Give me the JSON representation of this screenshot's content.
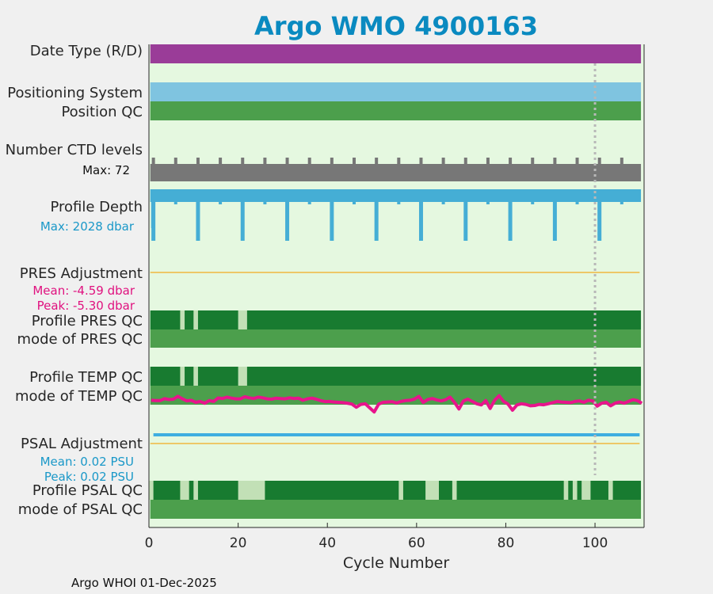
{
  "chart_data": {
    "type": "bar",
    "title": "Argo WMO 4900163",
    "xlabel": "Cycle Number",
    "xlim": [
      0,
      111
    ],
    "x_ticks": [
      "0",
      "20",
      "40",
      "60",
      "80",
      "100"
    ],
    "footer": "Argo WHOI 01-Dec-2025",
    "marker_cycle": 100,
    "colors": {
      "background": "#e5f8e0",
      "date_type": "#9a3c98",
      "positioning": "#7fc4e0",
      "qc_mode": "#4c9f4c",
      "qc_good": "#187b30",
      "qc_light": "#c2e0b6",
      "ctd": "#777777",
      "depth": "#45aed5",
      "adjust_line": "#f0b840",
      "temp_line": "#e8148c",
      "psal_line": "#3eaee0",
      "accent_text_pink": "#e0117f",
      "accent_text_blue": "#1a98c8"
    },
    "rows": {
      "date_type": {
        "label": "Date Type (R/D)",
        "values": [
          "D"
        ]
      },
      "positioning": {
        "label": "Positioning System"
      },
      "position_qc": {
        "label": "Position QC"
      },
      "ctd_levels": {
        "label": "Number CTD levels",
        "max_label": "Max: 72",
        "max": 72
      },
      "profile_depth": {
        "label": "Profile Depth",
        "max_label": "Max: 2028 dbar",
        "max": 2028
      },
      "pres_adjustment": {
        "label": "PRES Adjustment",
        "mean_label": "Mean: -4.59 dbar",
        "peak_label": "Peak: -5.30 dbar"
      },
      "profile_pres_qc": {
        "label": "Profile PRES QC"
      },
      "mode_pres_qc": {
        "label": "mode of PRES QC"
      },
      "profile_temp_qc": {
        "label": "Profile TEMP QC"
      },
      "mode_temp_qc": {
        "label": "mode of TEMP QC"
      },
      "psal_adjustment": {
        "label": "PSAL Adjustment",
        "mean_label": "Mean: 0.02 PSU",
        "peak_label": "Peak: 0.02 PSU"
      },
      "profile_psal_qc": {
        "label": "Profile PSAL QC"
      },
      "mode_psal_qc": {
        "label": "mode of PSAL QC"
      }
    },
    "ctd_spike_cycles": [
      1,
      6,
      11,
      16,
      21,
      26,
      31,
      36,
      41,
      46,
      51,
      56,
      61,
      66,
      71,
      76,
      81,
      86,
      91,
      96,
      101,
      106
    ],
    "deep_profile_cycles": [
      1,
      11,
      21,
      31,
      41,
      51,
      61,
      71,
      81,
      91,
      101
    ],
    "mid_profile_cycles": [
      6,
      16,
      26,
      36,
      46,
      56,
      66,
      76,
      86,
      96,
      106
    ],
    "pres_qc_light_ranges": [
      [
        7,
        8
      ],
      [
        10,
        11
      ],
      [
        20,
        22
      ]
    ],
    "psal_qc_light_ranges": [
      [
        0,
        1
      ],
      [
        7,
        9
      ],
      [
        10,
        11
      ],
      [
        20,
        26
      ],
      [
        56,
        57
      ],
      [
        62,
        65
      ],
      [
        68,
        69
      ],
      [
        93,
        94
      ],
      [
        95,
        96
      ],
      [
        97,
        99
      ],
      [
        103,
        104
      ]
    ],
    "temp_line_values": [
      0.62,
      0.6,
      0.6,
      0.71,
      0.66,
      0.68,
      0.85,
      0.7,
      0.58,
      0.62,
      0.5,
      0.55,
      0.45,
      0.6,
      0.55,
      0.75,
      0.72,
      0.8,
      0.74,
      0.7,
      0.7,
      0.82,
      0.76,
      0.72,
      0.8,
      0.76,
      0.7,
      0.68,
      0.74,
      0.72,
      0.7,
      0.76,
      0.72,
      0.74,
      0.62,
      0.7,
      0.74,
      0.68,
      0.6,
      0.54,
      0.55,
      0.52,
      0.5,
      0.48,
      0.45,
      0.4,
      0.22,
      0.38,
      0.42,
      0.18,
      -0.05,
      0.4,
      0.5,
      0.52,
      0.54,
      0.46,
      0.55,
      0.6,
      0.62,
      0.68,
      0.84,
      0.5,
      0.66,
      0.72,
      0.64,
      0.58,
      0.65,
      0.8,
      0.5,
      0.12,
      0.58,
      0.68,
      0.55,
      0.42,
      0.35,
      0.6,
      0.15,
      0.62,
      0.88,
      0.55,
      0.4,
      0.05,
      0.35,
      0.42,
      0.38,
      0.3,
      0.32,
      0.38,
      0.36,
      0.42,
      0.48,
      0.55,
      0.52,
      0.5,
      0.48,
      0.55,
      0.58,
      0.5,
      0.62,
      0.58,
      0.28,
      0.45,
      0.5,
      0.3,
      0.45,
      0.52,
      0.45,
      0.55,
      0.65,
      0.6,
      0.45
    ]
  }
}
